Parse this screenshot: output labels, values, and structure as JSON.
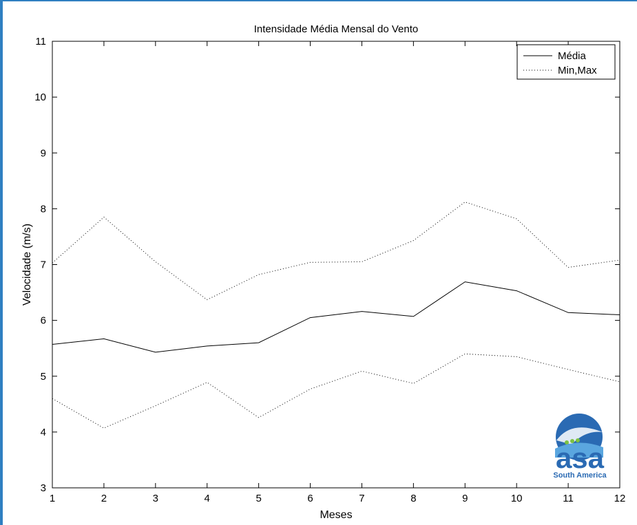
{
  "chart_data": {
    "type": "line",
    "title": "Intensidade Média Mensal do Vento",
    "xlabel": "Meses",
    "ylabel": "Velocidade (m/s)",
    "xlim": [
      1,
      12
    ],
    "ylim": [
      3,
      11
    ],
    "x_ticks": [
      "1",
      "2",
      "3",
      "4",
      "5",
      "6",
      "7",
      "8",
      "9",
      "10",
      "11",
      "12"
    ],
    "y_ticks": [
      "3",
      "4",
      "5",
      "6",
      "7",
      "8",
      "9",
      "10",
      "11"
    ],
    "grid": false,
    "legend_position": "top-right",
    "x": [
      1,
      2,
      3,
      4,
      5,
      6,
      7,
      8,
      9,
      10,
      11,
      12
    ],
    "series": [
      {
        "name": "Média",
        "style": "solid",
        "values": [
          5.57,
          5.67,
          5.43,
          5.54,
          5.6,
          6.05,
          6.16,
          6.07,
          6.69,
          6.53,
          6.14,
          6.1
        ]
      },
      {
        "name": "Min,Max",
        "style": "dotted",
        "role": "max",
        "values": [
          7.03,
          7.85,
          7.05,
          6.37,
          6.82,
          7.04,
          7.05,
          7.43,
          8.12,
          7.82,
          6.95,
          7.08
        ]
      },
      {
        "style": "dotted",
        "role": "min",
        "values": [
          4.6,
          4.07,
          4.47,
          4.89,
          4.26,
          4.77,
          5.09,
          4.87,
          5.4,
          5.35,
          5.12,
          4.9
        ]
      }
    ]
  },
  "logo": {
    "text": "asa",
    "subtitle": "South America",
    "accent": "#2a6ab3",
    "dots": "#7cc242"
  }
}
